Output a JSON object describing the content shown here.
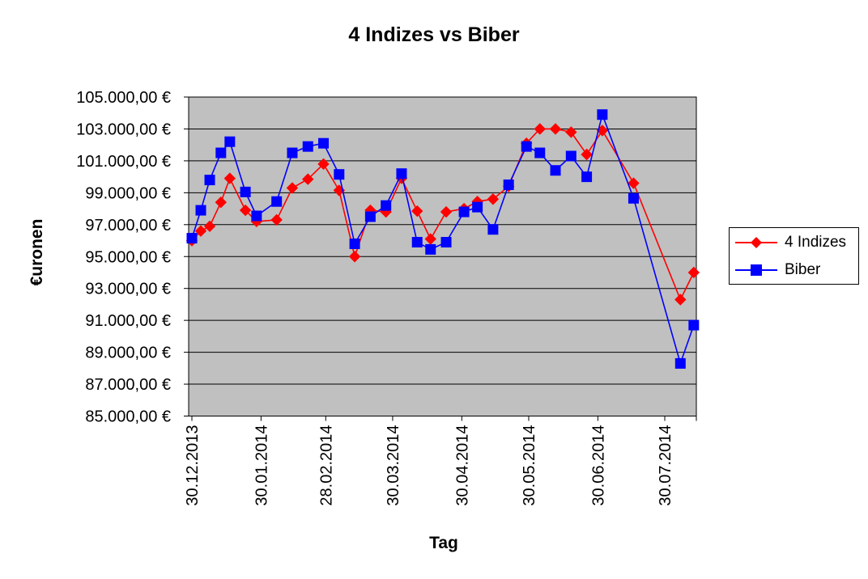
{
  "chart_data": {
    "type": "line",
    "title": "4 Indizes vs Biber",
    "xlabel": "Tag",
    "ylabel": "€uronen",
    "ylim": [
      85000,
      105000
    ],
    "y_tick_step": 2000,
    "y_tick_labels": [
      "105.000,00 €",
      "103.000,00 €",
      "101.000,00 €",
      "99.000,00 €",
      "97.000,00 €",
      "95.000,00 €",
      "93.000,00 €",
      "91.000,00 €",
      "89.000,00 €",
      "87.000,00 €",
      "85.000,00 €"
    ],
    "x_domain_days": [
      -1.45,
      226.15
    ],
    "x_ticks": [
      {
        "day": 0,
        "label": "30.12.2013"
      },
      {
        "day": 31,
        "label": "30.01.2014"
      },
      {
        "day": 60,
        "label": "28.02.2014"
      },
      {
        "day": 90,
        "label": "30.03.2014"
      },
      {
        "day": 121,
        "label": "30.04.2014"
      },
      {
        "day": 151,
        "label": "30.05.2014"
      },
      {
        "day": 182,
        "label": "30.06.2014"
      },
      {
        "day": 212,
        "label": "30.07.2014"
      }
    ],
    "grid": true,
    "plot_bg": "#c0c0c0",
    "grid_color": "#000000",
    "legend_position": "right",
    "series": [
      {
        "name": "4 Indizes",
        "color": "#ff0000",
        "marker": "diamond",
        "days": [
          0,
          4,
          8,
          13,
          17,
          24,
          29,
          38,
          45,
          52,
          59,
          66,
          73,
          80,
          87,
          94,
          101,
          107,
          114,
          122,
          128,
          135,
          142,
          150,
          156,
          163,
          170,
          177,
          184,
          198,
          219,
          225
        ],
        "values": [
          96000,
          96600,
          96900,
          98400,
          99900,
          97900,
          97200,
          97300,
          99300,
          99850,
          100800,
          99150,
          95000,
          97900,
          97800,
          99900,
          97850,
          96100,
          97800,
          98000,
          98450,
          98600,
          99400,
          102100,
          103000,
          103000,
          102800,
          101400,
          102900,
          99600,
          92300,
          94000
        ]
      },
      {
        "name": "Biber",
        "color": "#0000ff",
        "marker": "square",
        "days": [
          0,
          4,
          8,
          13,
          17,
          24,
          29,
          38,
          45,
          52,
          59,
          66,
          73,
          80,
          87,
          94,
          101,
          107,
          114,
          122,
          128,
          135,
          142,
          150,
          156,
          163,
          170,
          177,
          184,
          198,
          219,
          225
        ],
        "values": [
          96150,
          97900,
          99800,
          101500,
          102200,
          99050,
          97550,
          98450,
          101500,
          101900,
          102100,
          100150,
          95800,
          97500,
          98200,
          100200,
          95900,
          95450,
          95900,
          97800,
          98100,
          96700,
          99500,
          101900,
          101500,
          100400,
          101300,
          100000,
          103900,
          98650,
          88300,
          90700
        ]
      }
    ]
  }
}
